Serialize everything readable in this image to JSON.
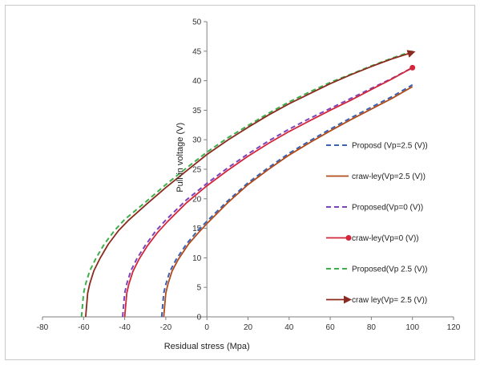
{
  "chart_data": {
    "type": "line",
    "title": "",
    "xlabel": "Residual stress (Mpa)",
    "ylabel": "Pull-in voltage  (V)",
    "xlim": [
      -80,
      120
    ],
    "ylim": [
      0,
      50
    ],
    "xticks": [
      -80,
      -60,
      -40,
      -20,
      0,
      20,
      40,
      60,
      80,
      100,
      120
    ],
    "yticks": [
      0,
      5,
      10,
      15,
      20,
      25,
      30,
      35,
      40,
      45,
      50
    ],
    "grid": false,
    "legend_position": "right",
    "series": [
      {
        "name": "Proposd (Vp=2.5 (V))",
        "color": "#3a62b0",
        "dash": "dashed",
        "marker": "none",
        "x": [
          -22,
          -21,
          -20,
          -18,
          -15,
          -10,
          -5,
          0,
          10,
          20,
          30,
          40,
          50,
          60,
          70,
          80,
          90,
          100
        ],
        "y": [
          0,
          4,
          5.5,
          7.7,
          9.7,
          12.3,
          14.4,
          16.2,
          19.6,
          22.7,
          25.3,
          27.7,
          29.8,
          31.8,
          33.7,
          35.5,
          37.3,
          39.3
        ]
      },
      {
        "name": "craw-ley(Vp=2.5 (V))",
        "color": "#b34a1a",
        "dash": "solid",
        "marker": "none",
        "x": [
          -21,
          -20,
          -19,
          -17,
          -14,
          -9,
          -4,
          0,
          10,
          20,
          30,
          40,
          50,
          60,
          70,
          80,
          90,
          100
        ],
        "y": [
          0,
          4,
          5.5,
          7.7,
          9.7,
          12.3,
          14.3,
          15.8,
          19.3,
          22.4,
          25.0,
          27.4,
          29.5,
          31.5,
          33.4,
          35.2,
          37.0,
          39.0
        ]
      },
      {
        "name": "Proposed(Vp=0 (V))",
        "color": "#7a45b8",
        "dash": "dashed",
        "marker": "none",
        "x": [
          -41,
          -40,
          -39,
          -37,
          -34,
          -30,
          -25,
          -20,
          -10,
          0,
          10,
          20,
          30,
          40,
          50,
          60,
          70,
          80,
          90,
          100
        ],
        "y": [
          0,
          4,
          5.6,
          7.8,
          9.9,
          12.1,
          14.5,
          16.4,
          19.8,
          22.6,
          25.2,
          27.6,
          29.8,
          31.8,
          33.6,
          35.3,
          37.0,
          38.7,
          40.4,
          42.2
        ]
      },
      {
        "name": "craw-ley(Vp=0 (V))",
        "color": "#d3263a",
        "dash": "solid",
        "marker": "circle",
        "x": [
          -40,
          -39,
          -38,
          -36,
          -33,
          -29,
          -24,
          -19,
          -10,
          0,
          10,
          20,
          30,
          40,
          50,
          60,
          70,
          80,
          90,
          100
        ],
        "y": [
          0,
          4,
          5.5,
          7.7,
          9.8,
          12.0,
          14.3,
          16.2,
          19.3,
          22.2,
          24.8,
          27.2,
          29.4,
          31.4,
          33.2,
          35.0,
          36.7,
          38.5,
          40.3,
          42.2
        ]
      },
      {
        "name": "Proposed(Vp   2.5 (V))",
        "color": "#3cae4a",
        "dash": "dashed",
        "marker": "none",
        "x": [
          -61,
          -60,
          -59,
          -57,
          -54,
          -50,
          -45,
          -40,
          -30,
          -20,
          -10,
          0,
          10,
          20,
          30,
          40,
          50,
          60,
          70,
          80,
          90,
          100
        ],
        "y": [
          0,
          4,
          5.6,
          7.8,
          9.9,
          12.3,
          14.6,
          16.5,
          19.4,
          22.4,
          25.2,
          27.9,
          30.3,
          32.4,
          34.5,
          36.4,
          38.1,
          39.7,
          41.1,
          42.5,
          43.8,
          45.0
        ]
      },
      {
        "name": "craw ley(Vp= 2.5 (V))",
        "color": "#8b2a1e",
        "dash": "solid",
        "marker": "arrow",
        "x": [
          -59,
          -58,
          -57,
          -55,
          -52,
          -48,
          -43,
          -38,
          -30,
          -20,
          -10,
          0,
          10,
          20,
          30,
          40,
          50,
          60,
          70,
          80,
          90,
          100
        ],
        "y": [
          0,
          4,
          5.6,
          7.8,
          9.9,
          12.3,
          14.6,
          16.4,
          18.9,
          21.9,
          24.7,
          27.5,
          29.9,
          32.1,
          34.2,
          36.1,
          37.8,
          39.5,
          41.0,
          42.4,
          43.7,
          44.8
        ]
      }
    ]
  }
}
